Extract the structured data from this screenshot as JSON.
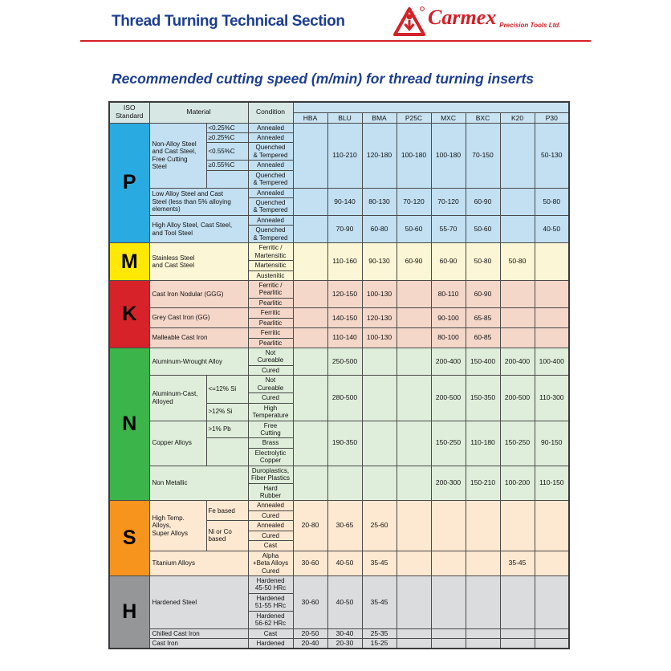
{
  "header": {
    "title": "Thread Turning Technical Section",
    "brand_name": "Carmex",
    "brand_suffix": "Precision Tools Ltd.",
    "registered_mark": "®"
  },
  "section_title": "Recommended cutting speed (m/min) for thread turning inserts",
  "colors": {
    "accent_blue": "#1c3e91",
    "brand_red": "#d42027"
  },
  "table": {
    "headers": {
      "iso": "ISO\nStandard",
      "material": "Material",
      "condition": "Condition"
    },
    "grades": [
      "HBA",
      "BLU",
      "BMA",
      "P25C",
      "MXC",
      "BXC",
      "K20",
      "P30"
    ],
    "sections": [
      {
        "letter": "P",
        "letter_bg": "#29abe2",
        "row_bg": "#c2e0f2",
        "groups": [
          {
            "material": "Non-Alloy Steel\nand Cast Steel,\nFree Cutting Steel",
            "has_sub": true,
            "rows": [
              {
                "sub": {
                  "text": "<0.25%C"
                },
                "cond": "Annealed"
              },
              {
                "sub": {
                  "text": "≥0.25%C"
                },
                "cond": "Annealed"
              },
              {
                "sub": {
                  "text": "<0.55%C"
                },
                "cond": "Quenched\n& Tempered"
              },
              {
                "sub": {
                  "text": "≥0.55%C"
                },
                "cond": "Annealed"
              },
              {
                "sub": {
                  "text": ""
                },
                "cond": "Quenched\n& Tempered"
              }
            ],
            "values": [
              "",
              "110-210",
              "120-180",
              "100-180",
              "100-180",
              "70-150",
              "",
              "50-130"
            ]
          },
          {
            "material": "Low Alloy Steel and Cast\nSteel (less than 5% alloying\nelements)",
            "has_sub": false,
            "rows": [
              {
                "cond": "Annealed"
              },
              {
                "cond": "Quenched\n& Tempered"
              }
            ],
            "values": [
              "",
              "90-140",
              "80-130",
              "70-120",
              "70-120",
              "60-90",
              "",
              "50-80"
            ]
          },
          {
            "material": "High Alloy Steel, Cast Steel,\nand Tool Steel",
            "has_sub": false,
            "rows": [
              {
                "cond": "Annealed"
              },
              {
                "cond": "Quenched\n& Tempered"
              }
            ],
            "values": [
              "",
              "70-90",
              "60-80",
              "50-60",
              "55-70",
              "50-60",
              "",
              "40-50"
            ]
          }
        ]
      },
      {
        "letter": "M",
        "letter_bg": "#ffe805",
        "row_bg": "#fbf6d5",
        "groups": [
          {
            "material": "Stainless Steel\nand Cast Steel",
            "has_sub": false,
            "rows": [
              {
                "cond": "Ferritic /\nMartensitic"
              },
              {
                "cond": "Martensitic"
              },
              {
                "cond": "Austenitic"
              }
            ],
            "values": [
              "",
              "110-160",
              "90-130",
              "60-90",
              "60-90",
              "50-80",
              "50-80",
              ""
            ]
          }
        ]
      },
      {
        "letter": "K",
        "letter_bg": "#d7222a",
        "row_bg": "#f4d7c9",
        "groups": [
          {
            "material": "Cast Iron Nodular (GGG)",
            "has_sub": false,
            "rows": [
              {
                "cond": "Ferritic /\nPearlitic"
              },
              {
                "cond": "Pearlitic"
              }
            ],
            "values": [
              "",
              "120-150",
              "100-130",
              "",
              "80-110",
              "60-90",
              "",
              ""
            ]
          },
          {
            "material": "Grey Cast Iron (GG)",
            "has_sub": false,
            "rows": [
              {
                "cond": "Ferritic"
              },
              {
                "cond": "Pearlitic"
              }
            ],
            "values": [
              "",
              "140-150",
              "120-130",
              "",
              "90-100",
              "65-85",
              "",
              ""
            ]
          },
          {
            "material": "Malleable Cast Iron",
            "has_sub": false,
            "rows": [
              {
                "cond": "Ferritic"
              },
              {
                "cond": "Pearlitic"
              }
            ],
            "values": [
              "",
              "110-140",
              "100-130",
              "",
              "80-100",
              "60-85",
              "",
              ""
            ]
          }
        ]
      },
      {
        "letter": "N",
        "letter_bg": "#3bb44a",
        "row_bg": "#dfeeda",
        "groups": [
          {
            "material": "Aluminum-Wrought Alloy",
            "has_sub": false,
            "rows": [
              {
                "cond": "Not\nCureable"
              },
              {
                "cond": "Cured"
              }
            ],
            "values": [
              "",
              "250-500",
              "",
              "",
              "200-400",
              "150-400",
              "200-400",
              "100-400"
            ]
          },
          {
            "material": "Aluminum-Cast,\nAlloyed",
            "has_sub": true,
            "rows": [
              {
                "sub": {
                  "text": "<=12% Si",
                  "span": 2
                },
                "cond": "Not\nCureable"
              },
              {
                "cond": "Cured"
              },
              {
                "sub": {
                  "text": ">12% Si"
                },
                "cond": "High\nTemperature"
              }
            ],
            "values": [
              "",
              "280-500",
              "",
              "",
              "200-500",
              "150-350",
              "200-500",
              "110-300"
            ]
          },
          {
            "material": "Copper Alloys",
            "has_sub": true,
            "rows": [
              {
                "sub": {
                  "text": ">1% Pb"
                },
                "cond": "Free\nCutting"
              },
              {
                "sub": {
                  "text": "",
                  "span": 2
                },
                "cond": "Brass"
              },
              {
                "cond": "Electrolytic\nCopper"
              }
            ],
            "values": [
              "",
              "190-350",
              "",
              "",
              "150-250",
              "110-180",
              "150-250",
              "90-150"
            ]
          },
          {
            "material": "Non Metallic",
            "has_sub": false,
            "rows": [
              {
                "cond": "Duroplastics,\nFiber Plastics"
              },
              {
                "cond": "Hard\nRubber"
              }
            ],
            "values": [
              "",
              "",
              "",
              "",
              "200-300",
              "150-210",
              "100-200",
              "110-150"
            ]
          }
        ]
      },
      {
        "letter": "S",
        "letter_bg": "#f7941e",
        "row_bg": "#fde8d1",
        "groups": [
          {
            "material": "High Temp. Alloys,\nSuper Alloys",
            "has_sub": true,
            "rows": [
              {
                "sub": {
                  "text": "Fe based",
                  "span": 2
                },
                "cond": "Annealed"
              },
              {
                "cond": "Cured"
              },
              {
                "sub": {
                  "text": "Ni or Co\nbased",
                  "span": 3
                },
                "cond": "Annealed"
              },
              {
                "cond": "Cured"
              },
              {
                "cond": "Cast"
              }
            ],
            "values": [
              "20-80",
              "30-65",
              "25-60",
              "",
              "",
              "",
              "",
              ""
            ]
          },
          {
            "material": "Titanium Alloys",
            "has_sub": false,
            "rows": [
              {
                "cond": "Alpha\n+Beta Alloys\nCured"
              }
            ],
            "values": [
              "30-60",
              "40-50",
              "35-45",
              "",
              "",
              "",
              "35-45",
              ""
            ]
          }
        ]
      },
      {
        "letter": "H",
        "letter_bg": "#949698",
        "row_bg": "#dbdcdd",
        "groups": [
          {
            "material": "Hardened Steel",
            "has_sub": false,
            "rows": [
              {
                "cond": "Hardened\n45-50 HRc"
              },
              {
                "cond": "Hardened\n51-55 HRc"
              },
              {
                "cond": "Hardened\n56-62 HRc"
              }
            ],
            "values": [
              "30-60",
              "40-50",
              "35-45",
              "",
              "",
              "",
              "",
              ""
            ]
          },
          {
            "material": "Chilled Cast Iron",
            "has_sub": false,
            "rows": [
              {
                "cond": "Cast"
              }
            ],
            "values": [
              "20-50",
              "30-40",
              "25-35",
              "",
              "",
              "",
              "",
              ""
            ]
          },
          {
            "material": "Cast Iron",
            "has_sub": false,
            "rows": [
              {
                "cond": "Hardened"
              }
            ],
            "values": [
              "20-40",
              "20-30",
              "15-25",
              "",
              "",
              "",
              "",
              ""
            ]
          }
        ]
      }
    ]
  }
}
